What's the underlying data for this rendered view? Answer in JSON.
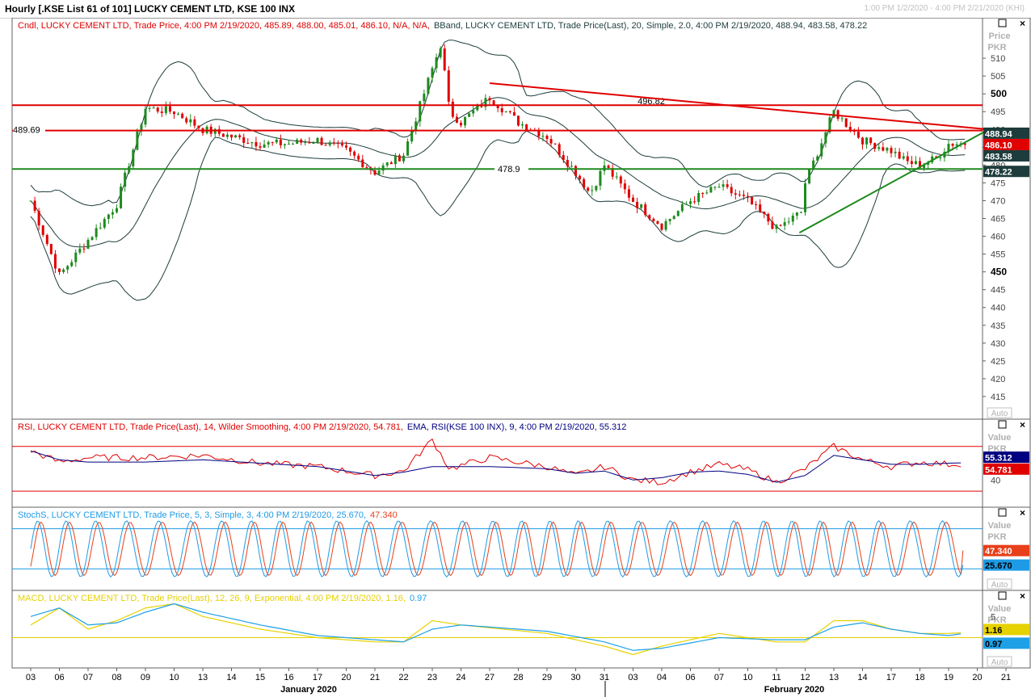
{
  "window": {
    "title": "Hourly [.KSE List 61 of 101] LUCKY CEMENT LTD, KSE 100 INX",
    "range": "1:00 PM 1/2/2020 - 4:00 PM 2/21/2020 (KHI)"
  },
  "colors": {
    "up": "#1e8a1e",
    "down": "#e00000",
    "band": "#1e3c3c",
    "rsi": "#e00000",
    "ema": "#000080",
    "stochK": "#1e9be6",
    "stochD": "#e8401a",
    "macd": "#e6d200",
    "signal": "#1ea0e6",
    "resist": "#e00000",
    "support": "#1e8a1e"
  },
  "chart_data": [
    {
      "type": "candlestick",
      "legend": [
        {
          "text": "Cndl, LUCKY CEMENT LTD, Trade Price,  4:00 PM 2/19/2020, 485.89, 488.00, 485.01, 486.10, N/A, N/A,",
          "color": "#e00000"
        },
        {
          "text": "BBand, LUCKY CEMENT LTD, Trade Price(Last),  20, Simple, 2.0,  4:00 PM 2/19/2020, 488.94, 483.58, 478.22",
          "color": "#1e3c3c"
        }
      ],
      "ylabel": "Price PKR",
      "ylim": [
        410,
        520
      ],
      "yticks": [
        415,
        420,
        425,
        430,
        435,
        440,
        445,
        450,
        455,
        460,
        465,
        470,
        475,
        480,
        485,
        490,
        495,
        500,
        505,
        510
      ],
      "bold_ticks": [
        450,
        500
      ],
      "x_days": [
        "03",
        "06",
        "07",
        "08",
        "09",
        "10",
        "13",
        "14",
        "15",
        "16",
        "17",
        "20",
        "21",
        "22",
        "23",
        "24",
        "27",
        "28",
        "29",
        "30",
        "31",
        "03",
        "04",
        "06",
        "07",
        "10",
        "11",
        "12",
        "13",
        "14",
        "17",
        "18",
        "19",
        "20",
        "21"
      ],
      "months": [
        "January 2020",
        "February 2020"
      ],
      "close_anchors": [
        [
          0,
          470
        ],
        [
          1,
          449
        ],
        [
          3,
          469
        ],
        [
          4,
          496
        ],
        [
          5,
          495
        ],
        [
          6,
          490
        ],
        [
          7,
          488
        ],
        [
          8,
          486
        ],
        [
          9,
          486
        ],
        [
          10,
          487
        ],
        [
          11,
          484
        ],
        [
          12,
          478
        ],
        [
          13,
          483
        ],
        [
          14,
          507
        ],
        [
          14.3,
          514
        ],
        [
          14.6,
          495
        ],
        [
          15,
          492
        ],
        [
          16,
          499
        ],
        [
          17,
          492
        ],
        [
          18,
          488
        ],
        [
          19,
          478
        ],
        [
          19.5,
          472
        ],
        [
          20,
          480
        ],
        [
          21,
          470
        ],
        [
          22,
          463
        ],
        [
          23,
          470
        ],
        [
          24,
          474
        ],
        [
          25,
          470
        ],
        [
          26,
          462
        ],
        [
          26.9,
          467
        ],
        [
          27,
          475
        ],
        [
          28,
          495
        ],
        [
          29,
          487
        ],
        [
          30,
          484
        ],
        [
          30.5,
          481
        ],
        [
          31,
          480
        ],
        [
          31.6,
          482
        ],
        [
          32,
          486
        ],
        [
          32.5,
          486.1
        ]
      ],
      "band": {
        "upper": 488.94,
        "middle": 483.58,
        "lower": 478.22
      },
      "price_labels": [
        {
          "name": "bb-upper-price-label",
          "value": "488.94",
          "bg": "#1e3c3c",
          "fg": "#ffffff"
        },
        {
          "name": "last-price-label",
          "value": "486.10",
          "bg": "#e00000",
          "fg": "#ffffff"
        },
        {
          "name": "bb-middle-price-label",
          "value": "483.58",
          "bg": "#1e3c3c",
          "fg": "#ffffff"
        },
        {
          "name": "bb-lower-price-label",
          "value": "478.22",
          "bg": "#1e3c3c",
          "fg": "#ffffff"
        }
      ],
      "horizontal_lines": [
        {
          "value": 496.82,
          "label": "496.82",
          "color": "#e00000"
        },
        {
          "value": 489.69,
          "label": "489.69",
          "color": "#e00000"
        },
        {
          "value": 478.9,
          "label": "478.9",
          "color": "#1e8a1e"
        }
      ],
      "trendlines": [
        {
          "from": [
            16,
            503
          ],
          "to": [
            33.4,
            490
          ],
          "color": "#e00000"
        },
        {
          "from": [
            26.8,
            461
          ],
          "to": [
            33.4,
            490
          ],
          "color": "#1e8a1e"
        }
      ],
      "auto_label": "Auto"
    },
    {
      "type": "line",
      "legend": [
        {
          "text": "RSI, LUCKY CEMENT LTD, Trade Price(Last),  14, Wilder Smoothing,  4:00 PM 2/19/2020, 54.781,",
          "color": "#e00000"
        },
        {
          "text": "EMA, RSI(KSE 100 INX),  9,  4:00 PM 2/19/2020, 55.312",
          "color": "#000080"
        }
      ],
      "ylabel": "Value PKR",
      "ylim": [
        20,
        90
      ],
      "yticks": [
        40
      ],
      "levels": [
        70,
        30
      ],
      "rsi_anchors": [
        [
          0,
          66
        ],
        [
          1,
          56
        ],
        [
          2,
          60
        ],
        [
          4,
          60
        ],
        [
          6,
          62
        ],
        [
          8,
          55
        ],
        [
          10,
          52
        ],
        [
          12,
          44
        ],
        [
          13,
          48
        ],
        [
          14,
          76
        ],
        [
          14.6,
          50
        ],
        [
          16,
          60
        ],
        [
          18,
          52
        ],
        [
          19,
          44
        ],
        [
          20,
          52
        ],
        [
          21,
          40
        ],
        [
          22,
          38
        ],
        [
          23,
          47
        ],
        [
          24,
          54
        ],
        [
          25,
          49
        ],
        [
          26,
          38
        ],
        [
          27,
          50
        ],
        [
          28,
          70
        ],
        [
          29,
          58
        ],
        [
          30,
          52
        ],
        [
          31,
          56
        ],
        [
          32,
          54
        ],
        [
          32.5,
          54.781
        ]
      ],
      "ema_anchors": [
        [
          0,
          66
        ],
        [
          1,
          58
        ],
        [
          2,
          56
        ],
        [
          4,
          56
        ],
        [
          6,
          58
        ],
        [
          8,
          55
        ],
        [
          10,
          52
        ],
        [
          12,
          44
        ],
        [
          13,
          47
        ],
        [
          14,
          52
        ],
        [
          16,
          52
        ],
        [
          18,
          50
        ],
        [
          19,
          46
        ],
        [
          20,
          48
        ],
        [
          21,
          40
        ],
        [
          22,
          42
        ],
        [
          23,
          47
        ],
        [
          24,
          48
        ],
        [
          25,
          45
        ],
        [
          26,
          38
        ],
        [
          27,
          44
        ],
        [
          28,
          62
        ],
        [
          29,
          58
        ],
        [
          30,
          54
        ],
        [
          31,
          54
        ],
        [
          32,
          55
        ],
        [
          32.5,
          55.312
        ]
      ],
      "price_labels": [
        {
          "name": "ema-value-label",
          "value": "55.312",
          "bg": "#000080",
          "fg": "#ffffff"
        },
        {
          "name": "rsi-value-label",
          "value": "54.781",
          "bg": "#e00000",
          "fg": "#ffffff"
        }
      ],
      "auto_label": "Auto"
    },
    {
      "type": "line",
      "legend": [
        {
          "text": "StochS, LUCKY CEMENT LTD, Trade Price,  5, 3, Simple, 3,  4:00 PM 2/19/2020, 25.670,",
          "color": "#1e9be6"
        },
        {
          "text": "47.340",
          "color": "#e8401a"
        }
      ],
      "ylabel": "Value PKR",
      "ylim": [
        -5,
        105
      ],
      "levels": [
        80,
        20
      ],
      "osc_period": 1.05,
      "stoch_end": {
        "k": 25.67,
        "d": 47.34
      },
      "price_labels": [
        {
          "name": "stoch-d-value-label",
          "value": "47.340",
          "bg": "#e8401a",
          "fg": "#ffffff"
        },
        {
          "name": "stoch-k-value-label",
          "value": "25.670",
          "bg": "#1e9be6",
          "fg": "#000000"
        }
      ],
      "auto_label": "Auto"
    },
    {
      "type": "line",
      "legend": [
        {
          "text": "MACD, LUCKY CEMENT LTD, Trade Price(Last),  12, 26, 9, Exponential,  4:00 PM 2/19/2020, 1.16,",
          "color": "#e6d200"
        },
        {
          "text": "0.97",
          "color": "#1ea0e6"
        }
      ],
      "ylabel": "Value PKR",
      "ylim": [
        -6,
        10
      ],
      "yticks": [
        5
      ],
      "levels": [
        0
      ],
      "macd_anchors": [
        [
          0,
          3
        ],
        [
          1,
          7
        ],
        [
          2,
          2
        ],
        [
          3,
          4
        ],
        [
          4,
          7
        ],
        [
          5,
          8
        ],
        [
          6,
          5
        ],
        [
          8,
          2
        ],
        [
          10,
          0
        ],
        [
          12,
          -1
        ],
        [
          13,
          -1
        ],
        [
          14,
          4
        ],
        [
          15,
          3
        ],
        [
          18,
          1
        ],
        [
          20,
          -2
        ],
        [
          21,
          -4
        ],
        [
          22,
          -2
        ],
        [
          24,
          1
        ],
        [
          26,
          -1
        ],
        [
          27,
          -1
        ],
        [
          28,
          4
        ],
        [
          29,
          4
        ],
        [
          30,
          2
        ],
        [
          31,
          1
        ],
        [
          32,
          1
        ],
        [
          32.5,
          1.16
        ]
      ],
      "signal_anchors": [
        [
          0,
          5
        ],
        [
          1,
          7
        ],
        [
          2,
          3
        ],
        [
          3,
          3.5
        ],
        [
          4,
          6
        ],
        [
          5,
          8
        ],
        [
          6,
          6
        ],
        [
          8,
          3
        ],
        [
          10,
          0.5
        ],
        [
          12,
          -0.5
        ],
        [
          13,
          -1
        ],
        [
          14,
          2
        ],
        [
          15,
          3
        ],
        [
          18,
          1.5
        ],
        [
          20,
          -1
        ],
        [
          21,
          -3
        ],
        [
          22,
          -2.5
        ],
        [
          24,
          0
        ],
        [
          26,
          -0.5
        ],
        [
          27,
          -0.5
        ],
        [
          28,
          2.5
        ],
        [
          29,
          3.5
        ],
        [
          30,
          2
        ],
        [
          31,
          1
        ],
        [
          32,
          0.5
        ],
        [
          32.5,
          0.97
        ]
      ],
      "price_labels": [
        {
          "name": "macd-value-label",
          "value": "1.16",
          "bg": "#e6d200",
          "fg": "#000000"
        },
        {
          "name": "signal-value-label",
          "value": "0.97",
          "bg": "#1ea0e6",
          "fg": "#000000"
        }
      ],
      "auto_label": "Auto"
    }
  ]
}
